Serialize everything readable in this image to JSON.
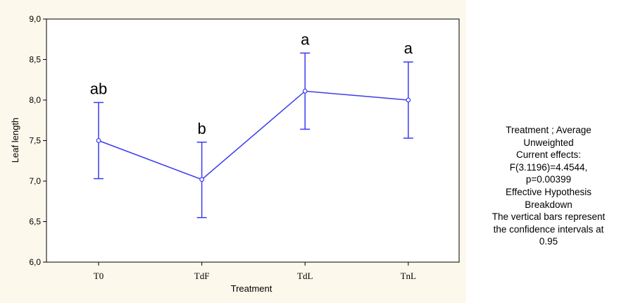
{
  "chart_data": {
    "type": "line",
    "xlabel": "Treatment",
    "ylabel": "Leaf length",
    "ylim": [
      6.0,
      9.0
    ],
    "yticks": [
      "6,0",
      "6,5",
      "7,0",
      "7,5",
      "8,0",
      "8,5",
      "9,0"
    ],
    "yticks_values": [
      6.0,
      6.5,
      7.0,
      7.5,
      8.0,
      8.5,
      9.0
    ],
    "categories": [
      "T0",
      "TdF",
      "TdL",
      "TnL"
    ],
    "series": [
      {
        "values": [
          7.5,
          7.02,
          8.11,
          8.0
        ],
        "error_low": [
          7.03,
          6.55,
          7.64,
          7.53
        ],
        "error_high": [
          7.97,
          7.48,
          8.58,
          8.47
        ],
        "color": "#3b3bf0"
      }
    ],
    "group_letters": [
      "ab",
      "b",
      "a",
      "a"
    ],
    "grid": false,
    "plot_background": "#fdf8ec",
    "legend": "none"
  },
  "note": {
    "lines": [
      "Treatment ; Average",
      "Unweighted",
      "Current effects:",
      "F(3.1196)=4.4544,",
      "p=0.00399",
      "Effective Hypothesis",
      "Breakdown",
      "The vertical bars represent",
      "the confidence intervals at",
      "0.95"
    ]
  }
}
